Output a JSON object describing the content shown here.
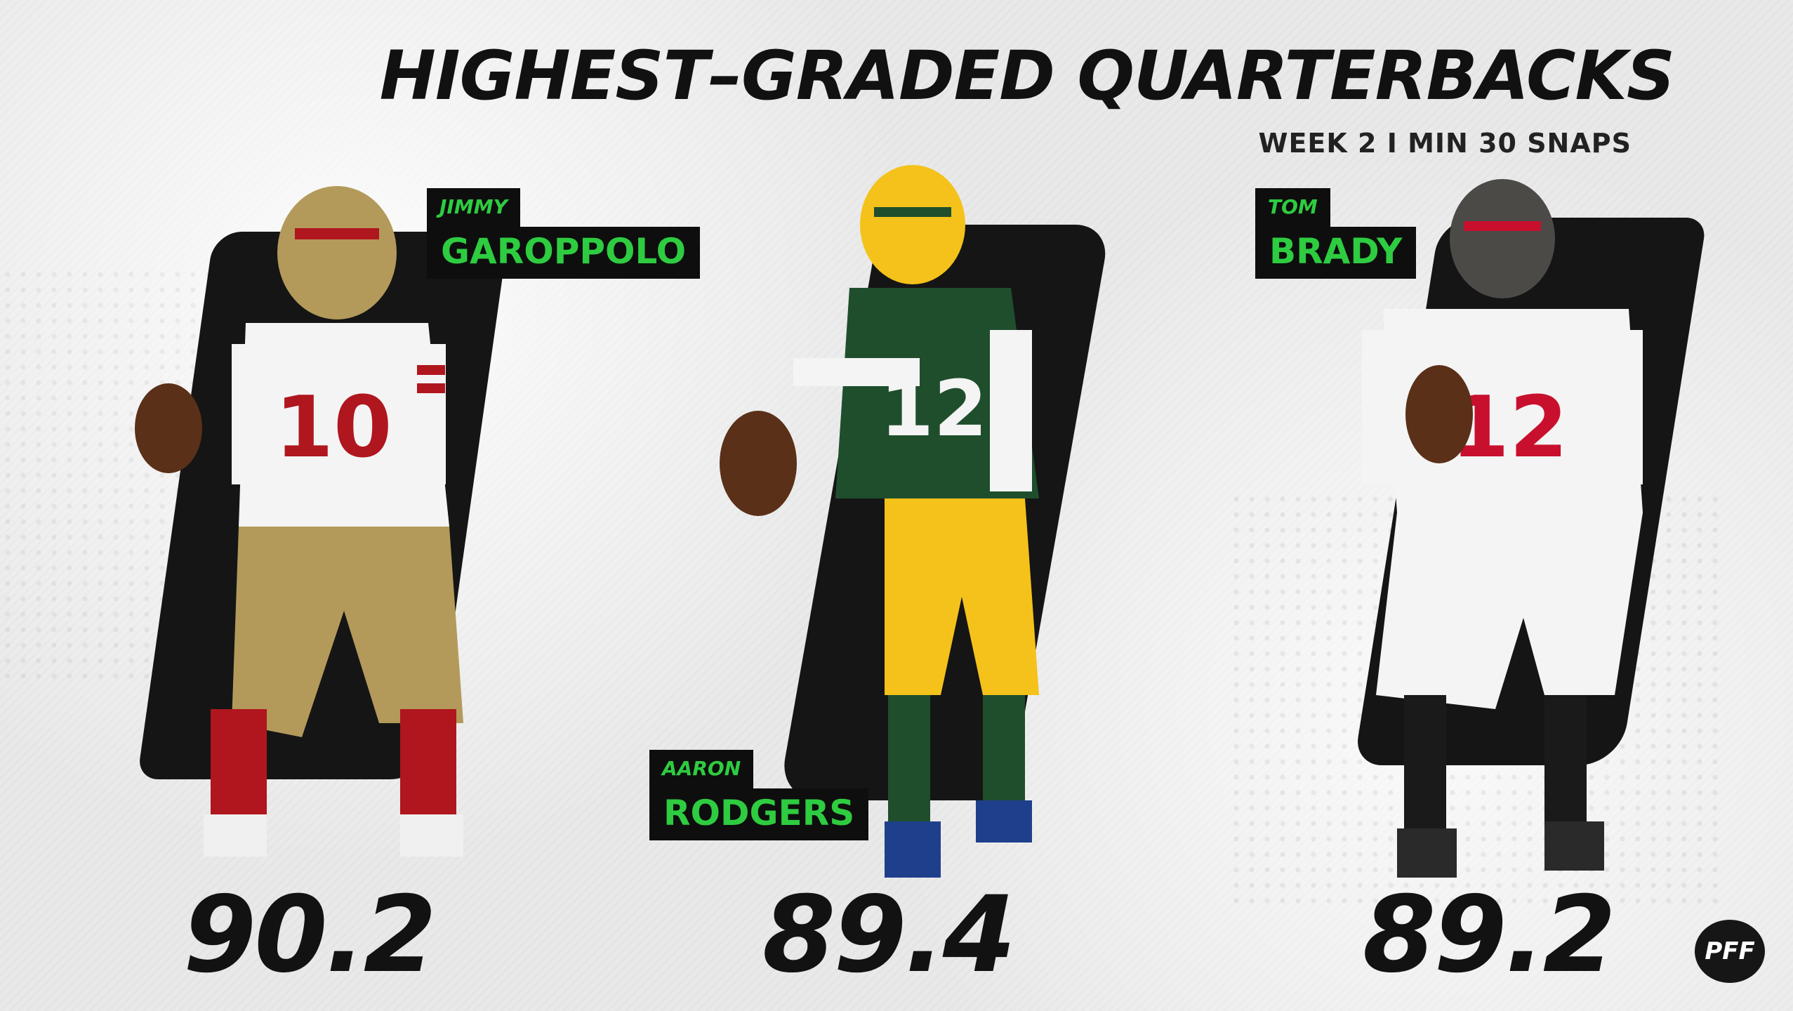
{
  "header": {
    "title": "HIGHEST–GRADED QUARTERBACKS",
    "subtitle": "WEEK 2 I MIN 30 SNAPS"
  },
  "players": [
    {
      "first_name": "JIMMY",
      "last_name": "GAROPPOLO",
      "grade": "90.2",
      "team_colors": {
        "helmet": "#b39a5a",
        "jersey": "#f4f4f4",
        "accent": "#b0161e",
        "pants": "#b39a5a"
      },
      "jersey_number": "10"
    },
    {
      "first_name": "AARON",
      "last_name": "RODGERS",
      "grade": "89.4",
      "team_colors": {
        "helmet": "#f4c21a",
        "jersey": "#1f4e2c",
        "accent": "#f4c21a",
        "pants": "#f4c21a"
      },
      "jersey_number": "12"
    },
    {
      "first_name": "TOM",
      "last_name": "BRADY",
      "grade": "89.2",
      "team_colors": {
        "helmet": "#4b4a47",
        "jersey": "#f4f4f4",
        "accent": "#c8102e",
        "pants": "#f4f4f4"
      },
      "jersey_number": "12"
    }
  ],
  "logo": {
    "text": "PFF"
  },
  "colors": {
    "label_text": "#2ecc40",
    "label_bg": "#0e0e0e",
    "ink": "#121212"
  }
}
